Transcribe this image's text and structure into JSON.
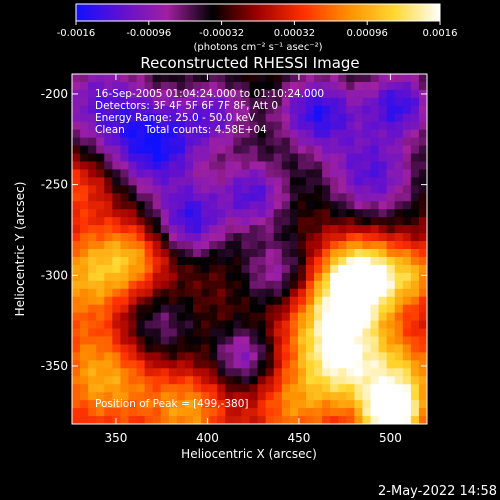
{
  "colorbar": {
    "min": -0.0016,
    "max": 0.0016,
    "tick_labels": [
      "-0.0016",
      "-0.00096",
      "-0.00032",
      "0.00032",
      "0.00096",
      "0.0016"
    ],
    "unit_label": "(photons cm⁻² s⁻¹ asec⁻²)",
    "colormap_stops": [
      "#1010ff",
      "#6010d0",
      "#a020a0",
      "#000000",
      "#a00000",
      "#ff3000",
      "#ff9000",
      "#ffd830",
      "#ffffff"
    ]
  },
  "chart_data": {
    "type": "heatmap",
    "title": "Reconstructed RHESSI Image",
    "xlabel": "Heliocentric X (arcsec)",
    "ylabel": "Heliocentric Y (arcsec)",
    "xlim": [
      326,
      520
    ],
    "ylim": [
      -382,
      -189
    ],
    "x_ticks": [
      350,
      400,
      450,
      500
    ],
    "y_ticks": [
      -200,
      -250,
      -300,
      -350
    ],
    "grid": false,
    "annotations": {
      "time_range": "16-Sep-2005 01:04:24.000 to 01:10:24.000",
      "detectors": "Detectors: 3F 4F 5F 6F 7F 8F, Att 0",
      "energy_range": "Energy Range: 25.0 - 50.0 keV",
      "method_and_counts": "Clean      Total counts: 4.58E+04",
      "peak_position": "Position of Peak = [499,-380]"
    },
    "peak": {
      "x": 499,
      "y": -380
    },
    "grid_size": [
      44,
      44
    ],
    "regions": [
      {
        "x": 342,
        "y": -205,
        "w": 20,
        "v": -0.001
      },
      {
        "x": 372,
        "y": -230,
        "w": 18,
        "v": -0.0013
      },
      {
        "x": 405,
        "y": -210,
        "w": 15,
        "v": -0.0009
      },
      {
        "x": 390,
        "y": -270,
        "w": 14,
        "v": -0.0012
      },
      {
        "x": 425,
        "y": -255,
        "w": 14,
        "v": -0.0011
      },
      {
        "x": 460,
        "y": -210,
        "w": 16,
        "v": -0.0013
      },
      {
        "x": 505,
        "y": -205,
        "w": 14,
        "v": -0.0012
      },
      {
        "x": 490,
        "y": -245,
        "w": 18,
        "v": -0.0011
      },
      {
        "x": 440,
        "y": -300,
        "w": 15,
        "v": -0.0009
      },
      {
        "x": 370,
        "y": -330,
        "w": 16,
        "v": -0.0008
      },
      {
        "x": 420,
        "y": -345,
        "w": 12,
        "v": -0.0009
      },
      {
        "x": 330,
        "y": -250,
        "w": 14,
        "v": 0.0006
      },
      {
        "x": 335,
        "y": -300,
        "w": 18,
        "v": 0.001
      },
      {
        "x": 360,
        "y": -290,
        "w": 14,
        "v": 0.0008
      },
      {
        "x": 345,
        "y": -355,
        "w": 22,
        "v": 0.0011
      },
      {
        "x": 390,
        "y": -375,
        "w": 15,
        "v": 0.0009
      },
      {
        "x": 445,
        "y": -375,
        "w": 15,
        "v": 0.0007
      },
      {
        "x": 470,
        "y": -320,
        "w": 20,
        "v": 0.0013
      },
      {
        "x": 485,
        "y": -300,
        "w": 15,
        "v": 0.0016
      },
      {
        "x": 470,
        "y": -350,
        "w": 18,
        "v": 0.0011
      },
      {
        "x": 505,
        "y": -360,
        "w": 18,
        "v": 0.0012
      },
      {
        "x": 500,
        "y": -378,
        "w": 10,
        "v": 0.0016
      },
      {
        "x": 515,
        "y": -300,
        "w": 12,
        "v": 0.0008
      }
    ]
  },
  "footer": {
    "timestamp": "2-May-2022 14:58"
  }
}
